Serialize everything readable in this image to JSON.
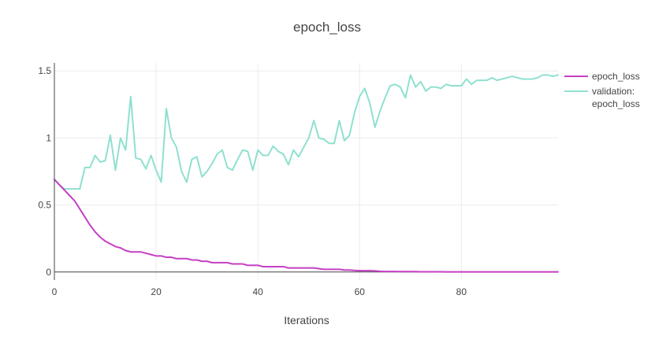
{
  "chart_data": {
    "type": "line",
    "title": "epoch_loss",
    "xlabel": "Iterations",
    "ylabel": "",
    "xlim": [
      0,
      99
    ],
    "ylim": [
      -0.06,
      1.56
    ],
    "x_ticks": [
      0,
      20,
      40,
      60,
      80
    ],
    "y_ticks": [
      0,
      0.5,
      1,
      1.5
    ],
    "x_tick_labels": [
      "0",
      "20",
      "40",
      "60",
      "80"
    ],
    "y_tick_labels": [
      "0",
      "0.5",
      "1",
      "1.5"
    ],
    "grid": true,
    "legend_position": "top-right",
    "series": [
      {
        "name": "epoch_loss",
        "color": "#c53fc4",
        "values": [
          0.69,
          0.65,
          0.61,
          0.57,
          0.53,
          0.47,
          0.41,
          0.35,
          0.3,
          0.26,
          0.23,
          0.21,
          0.19,
          0.18,
          0.16,
          0.15,
          0.15,
          0.15,
          0.14,
          0.13,
          0.12,
          0.12,
          0.11,
          0.11,
          0.1,
          0.1,
          0.1,
          0.09,
          0.09,
          0.08,
          0.08,
          0.07,
          0.07,
          0.07,
          0.07,
          0.06,
          0.06,
          0.06,
          0.05,
          0.05,
          0.05,
          0.04,
          0.04,
          0.04,
          0.04,
          0.04,
          0.03,
          0.03,
          0.03,
          0.03,
          0.03,
          0.03,
          0.025,
          0.02,
          0.02,
          0.02,
          0.02,
          0.015,
          0.015,
          0.012,
          0.01,
          0.01,
          0.01,
          0.008,
          0.005,
          0.004,
          0.004,
          0.004,
          0.003,
          0.003,
          0.003,
          0.003,
          0.002,
          0.002,
          0.002,
          0.002,
          0.002,
          0.001,
          0.001,
          0.001,
          0.001,
          0.001,
          0.001,
          0.001,
          0.001,
          0.001,
          0.001,
          0.001,
          0.001,
          0.001,
          0.001,
          0.001,
          0.001,
          0.001,
          0.001,
          0.001,
          0.001,
          0.001,
          0.001,
          0.001
        ]
      },
      {
        "name": "validation: epoch_loss",
        "legend_lines": [
          "validation:",
          "epoch_loss"
        ],
        "color": "#8fe0d0",
        "values": [
          0.69,
          0.65,
          0.62,
          0.62,
          0.62,
          0.62,
          0.78,
          0.78,
          0.87,
          0.82,
          0.83,
          1.02,
          0.76,
          1.0,
          0.91,
          1.31,
          0.85,
          0.84,
          0.77,
          0.87,
          0.76,
          0.67,
          1.22,
          1.0,
          0.93,
          0.75,
          0.67,
          0.84,
          0.86,
          0.71,
          0.75,
          0.81,
          0.88,
          0.91,
          0.78,
          0.76,
          0.84,
          0.91,
          0.9,
          0.76,
          0.91,
          0.87,
          0.87,
          0.94,
          0.9,
          0.88,
          0.8,
          0.91,
          0.86,
          0.93,
          1.0,
          1.13,
          1.0,
          0.99,
          0.96,
          0.96,
          1.13,
          0.98,
          1.02,
          1.19,
          1.31,
          1.37,
          1.26,
          1.08,
          1.2,
          1.3,
          1.39,
          1.4,
          1.38,
          1.3,
          1.47,
          1.38,
          1.42,
          1.35,
          1.38,
          1.38,
          1.37,
          1.4,
          1.39,
          1.39,
          1.39,
          1.44,
          1.4,
          1.43,
          1.43,
          1.43,
          1.45,
          1.43,
          1.44,
          1.45,
          1.46,
          1.45,
          1.44,
          1.44,
          1.44,
          1.45,
          1.47,
          1.47,
          1.46,
          1.47
        ]
      }
    ]
  }
}
